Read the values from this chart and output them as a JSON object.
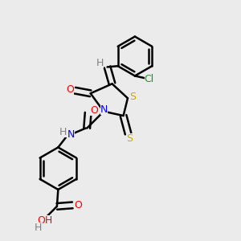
{
  "background_color": "#ebebeb",
  "atom_colors": {
    "C": "#000000",
    "H": "#808080",
    "N": "#0000ff",
    "O": "#ff0000",
    "S": "#ccaa00",
    "Cl": "#00aa00"
  },
  "bond_color": "#000000",
  "figsize": [
    3.0,
    3.0
  ],
  "dpi": 100
}
